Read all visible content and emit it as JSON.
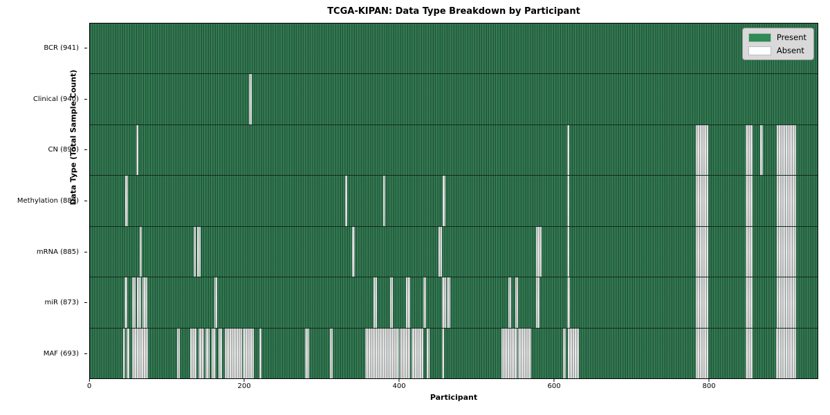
{
  "title": "TCGA-KIPAN: Data Type Breakdown by Participant",
  "axes": {
    "x_label": "Participant",
    "y_label": "Data Type (Total Sample Count)"
  },
  "legend": {
    "entries": [
      {
        "label": "Present",
        "color": "#2e8b57"
      },
      {
        "label": "Absent",
        "color": "#ffffff"
      }
    ]
  },
  "colors": {
    "present_fill": "#2e8b57",
    "present_plot_base": "#2f7a50",
    "absent_fill": "#ffffff",
    "absent_band": "#ececec",
    "legend_background": "#d9d9d9",
    "row_divider": "#10241a"
  },
  "chart_data": {
    "type": "heatmap",
    "title": "TCGA-KIPAN: Data Type Breakdown by Participant",
    "xlabel": "Participant",
    "ylabel": "Data Type (Total Sample Count)",
    "x_range": [
      0,
      941
    ],
    "x_ticks": [
      0,
      200,
      400,
      600,
      800
    ],
    "legend_position": "upper right",
    "value_encoding": {
      "present": "#2e8b57",
      "absent": "#ffffff"
    },
    "rows": [
      {
        "label": "BCR (941)",
        "data_type": "BCR",
        "present_count": 941,
        "absent_ranges": []
      },
      {
        "label": "Clinical (940)",
        "data_type": "Clinical",
        "present_count": 940,
        "absent_ranges": [
          [
            206,
            208
          ]
        ]
      },
      {
        "label": "CN (890)",
        "data_type": "CN",
        "present_count": 890,
        "absent_ranges": [
          [
            60,
            62
          ],
          [
            617,
            619
          ],
          [
            784,
            799
          ],
          [
            848,
            856
          ],
          [
            867,
            869
          ],
          [
            888,
            912
          ]
        ]
      },
      {
        "label": "Methylation (889)",
        "data_type": "Methylation",
        "present_count": 889,
        "absent_ranges": [
          [
            46,
            48
          ],
          [
            330,
            332
          ],
          [
            379,
            381
          ],
          [
            456,
            459
          ],
          [
            617,
            619
          ],
          [
            784,
            799
          ],
          [
            848,
            856
          ],
          [
            888,
            912
          ]
        ]
      },
      {
        "label": "mRNA (885)",
        "data_type": "mRNA",
        "present_count": 885,
        "absent_ranges": [
          [
            64,
            66
          ],
          [
            134,
            136
          ],
          [
            139,
            142
          ],
          [
            339,
            342
          ],
          [
            451,
            454
          ],
          [
            577,
            583
          ],
          [
            617,
            619
          ],
          [
            784,
            799
          ],
          [
            848,
            856
          ],
          [
            888,
            912
          ]
        ]
      },
      {
        "label": "miR (873)",
        "data_type": "miR",
        "present_count": 873,
        "absent_ranges": [
          [
            45,
            47
          ],
          [
            55,
            58
          ],
          [
            61,
            65
          ],
          [
            68,
            73
          ],
          [
            161,
            164
          ],
          [
            367,
            370
          ],
          [
            388,
            391
          ],
          [
            409,
            413
          ],
          [
            431,
            434
          ],
          [
            455,
            460
          ],
          [
            462,
            465
          ],
          [
            541,
            544
          ],
          [
            550,
            553
          ],
          [
            577,
            580
          ],
          [
            617,
            620
          ],
          [
            784,
            799
          ],
          [
            848,
            856
          ],
          [
            888,
            912
          ]
        ]
      },
      {
        "label": "MAF (693)",
        "data_type": "MAF",
        "present_count": 693,
        "absent_ranges": [
          [
            43,
            45
          ],
          [
            47,
            50
          ],
          [
            55,
            74
          ],
          [
            113,
            115
          ],
          [
            130,
            137
          ],
          [
            140,
            147
          ],
          [
            149,
            154
          ],
          [
            157,
            162
          ],
          [
            166,
            170
          ],
          [
            174,
            196
          ],
          [
            198,
            211
          ],
          [
            219,
            221
          ],
          [
            278,
            283
          ],
          [
            310,
            313
          ],
          [
            356,
            399
          ],
          [
            401,
            413
          ],
          [
            416,
            430
          ],
          [
            436,
            438
          ],
          [
            455,
            457
          ],
          [
            532,
            552
          ],
          [
            554,
            570
          ],
          [
            612,
            614
          ],
          [
            618,
            631
          ],
          [
            784,
            799
          ],
          [
            848,
            856
          ],
          [
            887,
            912
          ]
        ]
      }
    ]
  }
}
